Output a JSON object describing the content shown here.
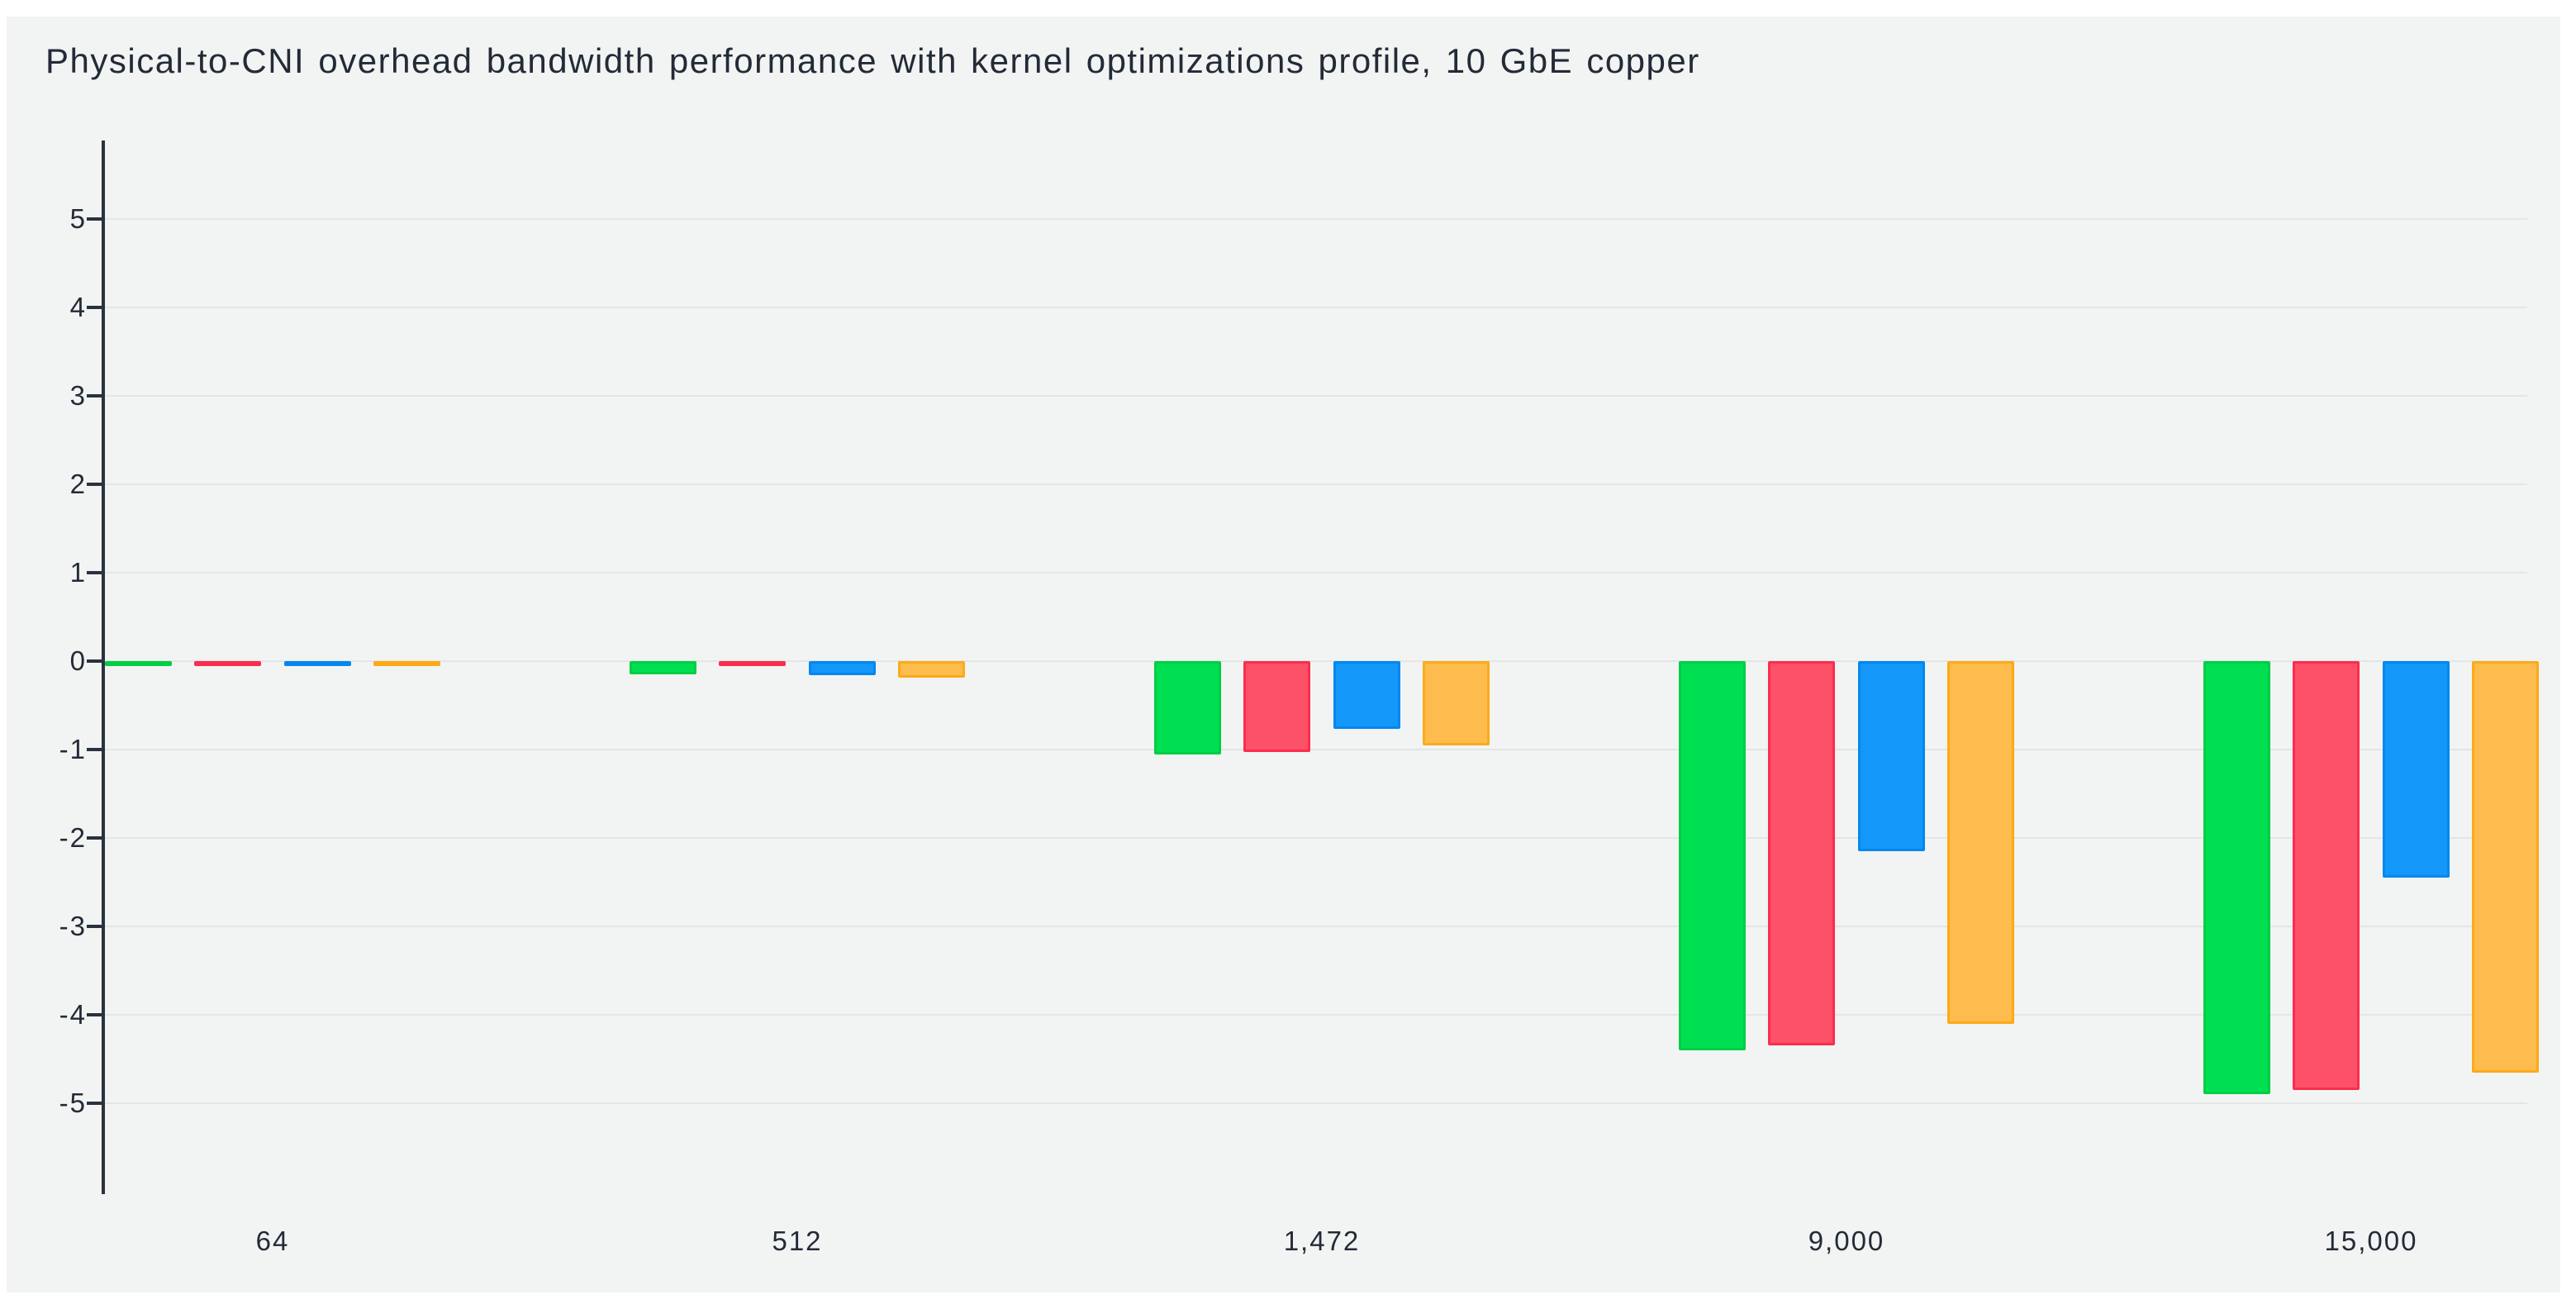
{
  "title": "Physical-to-CNI overhead bandwidth performance with kernel optimizations profile, 10 GbE copper",
  "chart_data": {
    "type": "bar",
    "title": "Physical-to-CNI overhead bandwidth performance with kernel optimizations profile, 10 GbE copper",
    "xlabel": "",
    "ylabel": "",
    "categories": [
      "64",
      "512",
      "1,472",
      "9,000",
      "15,000"
    ],
    "series": [
      {
        "name": "green",
        "fill": "#00df52",
        "border": "#00ce44",
        "values": [
          -0.02,
          -0.15,
          -1.06,
          -4.4,
          -4.9
        ]
      },
      {
        "name": "red",
        "fill": "#fd5168",
        "border": "#fb2d4e",
        "values": [
          -0.02,
          -0.05,
          -1.03,
          -4.35,
          -4.85
        ]
      },
      {
        "name": "blue",
        "fill": "#1398fa",
        "border": "#0487f0",
        "values": [
          -0.03,
          -0.16,
          -0.77,
          -2.15,
          -2.45
        ]
      },
      {
        "name": "orange",
        "fill": "#febc4f",
        "border": "#fcaa17",
        "values": [
          -0.04,
          -0.19,
          -0.95,
          -4.1,
          -4.65
        ]
      }
    ],
    "y_ticks": [
      5,
      4,
      3,
      2,
      1,
      0,
      -1,
      -2,
      -3,
      -4,
      -5
    ],
    "ylim": [
      -6,
      6
    ],
    "grid": true,
    "legend": "none"
  },
  "colors": {
    "page_bg": "#ffffff",
    "panel_bg": "#f2f4f3",
    "gridline": "#e3e6e4",
    "axis": "#29323e",
    "text": "#222b37"
  }
}
